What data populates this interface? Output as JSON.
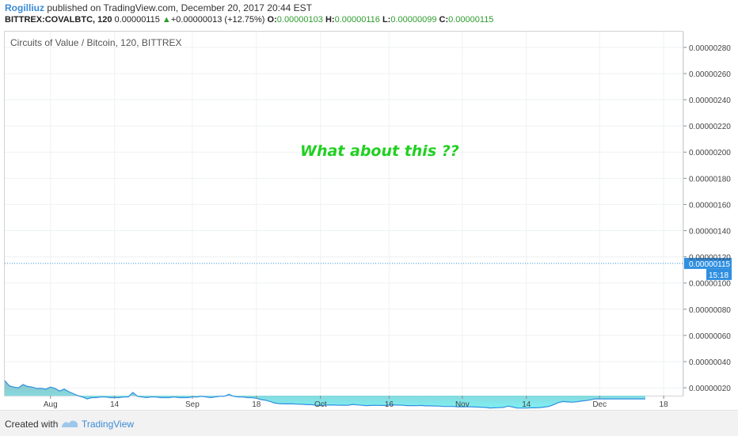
{
  "header": {
    "author": "Rogilliuz",
    "published_text": "published on TradingView.com, December 20, 2017 20:44 EST"
  },
  "ticker": {
    "symbol": "BITTREX:COVALBTC, 120",
    "last": "0.00000115",
    "change_arrow": "▲",
    "change": "+0.00000013 (+12.75%)",
    "open_label": "O:",
    "open_value": "0.00000103",
    "high_label": "H:",
    "high_value": "0.00000116",
    "low_label": "L:",
    "low_value": "0.00000099",
    "close_label": "C:",
    "close_value": "0.00000115"
  },
  "chart_title": "Circuits of Value / Bitcoin, 120, BITTREX",
  "annotation": "What about this ??",
  "colors": {
    "line": "#2f8fe0",
    "area_top": "#8fbfc6",
    "area_bottom": "#7ef0f2",
    "price_tag": "#2f8fe0",
    "annotation": "#20d020"
  },
  "chart_data": {
    "type": "area",
    "title": "Circuits of Value / Bitcoin, 120, BITTREX",
    "xlabel": "",
    "ylabel": "",
    "x_ticks": [
      "Aug",
      "14",
      "Sep",
      "18",
      "Oct",
      "16",
      "Nov",
      "14",
      "Dec",
      "18"
    ],
    "y_ticks": [
      "0.00000020",
      "0.00000040",
      "0.00000060",
      "0.00000080",
      "0.00000100",
      "0.00000120",
      "0.00000140",
      "0.00000160",
      "0.00000180",
      "0.00000200",
      "0.00000220",
      "0.00000240",
      "0.00000260",
      "0.00000280"
    ],
    "ylim": [
      1.4e-07,
      2.92e-06
    ],
    "x_range_days": [
      0,
      140
    ],
    "x_tick_days": [
      10,
      24,
      41,
      55,
      69,
      84,
      100,
      114,
      130,
      144
    ],
    "current_price": "0.00000115",
    "current_price_value": 1.15e-06,
    "countdown": "15:18",
    "grid": true,
    "series": [
      {
        "x": [
          0,
          1,
          2,
          3,
          4,
          5,
          6,
          7,
          8,
          9,
          10,
          11,
          12,
          13,
          14,
          15,
          16,
          17,
          18,
          19,
          20,
          21,
          22,
          23,
          24,
          25,
          26,
          27,
          28,
          29,
          30,
          31,
          32,
          33,
          34,
          35,
          36,
          37,
          38,
          39,
          40,
          41,
          42,
          43,
          44,
          45,
          46,
          47,
          48,
          49,
          50,
          51,
          52,
          53,
          54,
          55,
          56,
          57,
          58,
          59,
          60,
          61,
          62,
          63,
          64,
          65,
          66,
          67,
          68,
          69,
          70,
          71,
          72,
          73,
          74,
          75,
          76,
          77,
          78,
          79,
          80,
          81,
          82,
          83,
          84,
          85,
          86,
          87,
          88,
          89,
          90,
          91,
          92,
          93,
          94,
          95,
          96,
          97,
          98,
          99,
          100,
          101,
          102,
          103,
          104,
          105,
          106,
          107,
          108,
          109,
          110,
          111,
          112,
          113,
          114,
          115,
          116,
          117,
          118,
          119,
          120,
          121,
          122,
          123,
          124,
          125,
          126,
          127,
          128,
          129,
          130,
          131,
          132,
          133,
          134,
          135,
          136,
          137,
          138,
          139,
          140
        ],
        "values": [
          2.55,
          2.15,
          2.05,
          2.0,
          2.25,
          2.1,
          2.05,
          1.95,
          1.95,
          1.9,
          2.05,
          1.95,
          1.75,
          1.9,
          1.7,
          1.55,
          1.4,
          1.3,
          1.15,
          1.25,
          1.25,
          1.3,
          1.3,
          1.25,
          1.25,
          1.25,
          1.3,
          1.3,
          1.65,
          1.35,
          1.3,
          1.25,
          1.3,
          1.3,
          1.25,
          1.25,
          1.25,
          1.3,
          1.25,
          1.25,
          1.25,
          1.3,
          1.3,
          1.35,
          1.3,
          1.25,
          1.3,
          1.35,
          1.35,
          1.5,
          1.35,
          1.3,
          1.3,
          1.25,
          1.25,
          1.2,
          1.1,
          1.05,
          0.95,
          0.83,
          0.79,
          0.77,
          0.77,
          0.77,
          0.75,
          0.74,
          0.71,
          0.71,
          0.66,
          0.64,
          0.68,
          0.68,
          0.68,
          0.66,
          0.67,
          0.66,
          0.73,
          0.69,
          0.66,
          0.64,
          0.65,
          0.66,
          0.65,
          0.65,
          0.68,
          0.68,
          0.68,
          0.66,
          0.64,
          0.64,
          0.63,
          0.65,
          0.62,
          0.62,
          0.6,
          0.6,
          0.57,
          0.57,
          0.57,
          0.55,
          0.55,
          0.55,
          0.55,
          0.53,
          0.52,
          0.5,
          0.46,
          0.47,
          0.48,
          0.5,
          0.6,
          0.53,
          0.46,
          0.45,
          0.46,
          0.47,
          0.47,
          0.49,
          0.53,
          0.58,
          0.72,
          0.87,
          0.95,
          0.92,
          0.9,
          0.93,
          0.98,
          1.02,
          1.08,
          1.15,
          1.15,
          1.15,
          1.15,
          1.15,
          1.15,
          1.15,
          1.15,
          1.15,
          1.15,
          1.15,
          1.15
        ]
      }
    ]
  },
  "footer": {
    "created_with": "Created with",
    "brand": "TradingView"
  }
}
